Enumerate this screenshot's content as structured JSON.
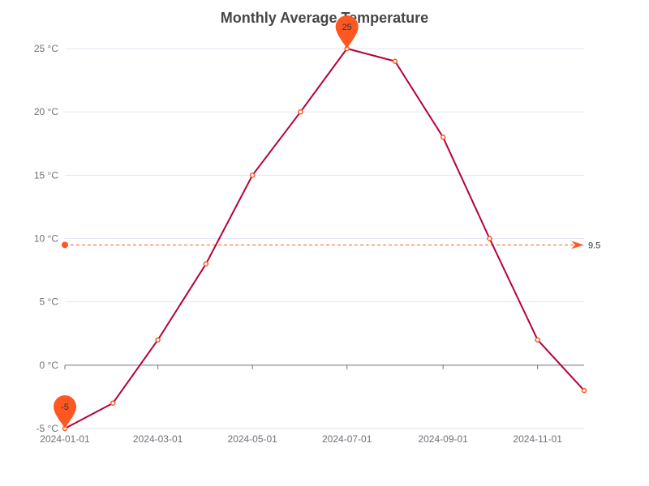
{
  "chart_data": {
    "type": "line",
    "title": "Monthly Average Temperature",
    "x": [
      "2024-01-01",
      "2024-02-01",
      "2024-03-01",
      "2024-04-01",
      "2024-05-01",
      "2024-06-01",
      "2024-07-01",
      "2024-08-01",
      "2024-09-01",
      "2024-10-01",
      "2024-11-01",
      "2024-12-01"
    ],
    "x_tick_labels": [
      "2024-01-01",
      "2024-03-01",
      "2024-05-01",
      "2024-07-01",
      "2024-09-01",
      "2024-11-01"
    ],
    "series": [
      {
        "values": [
          -5,
          -3,
          2,
          8,
          15,
          20,
          25,
          24,
          18,
          10,
          2,
          -2
        ],
        "color": "#b5003a",
        "marker_color": "#ff5722"
      }
    ],
    "ylim": [
      -5,
      25
    ],
    "y_ticks": [
      -5,
      0,
      5,
      10,
      15,
      20,
      25
    ],
    "y_unit": "°C",
    "grid": true,
    "mark_points": [
      {
        "type": "max",
        "value": 25,
        "label": "25",
        "x": "2024-07-01"
      },
      {
        "type": "min",
        "value": -5,
        "label": "-5",
        "x": "2024-01-01"
      }
    ],
    "mark_line": {
      "type": "average",
      "value": 9.5,
      "label": "9.5",
      "color": "#ff5722"
    },
    "colors": {
      "line": "#b5003a",
      "marker": "#ff5722",
      "grid": "#e0e6f1",
      "axis": "#6e7079",
      "title": "#464646"
    }
  }
}
